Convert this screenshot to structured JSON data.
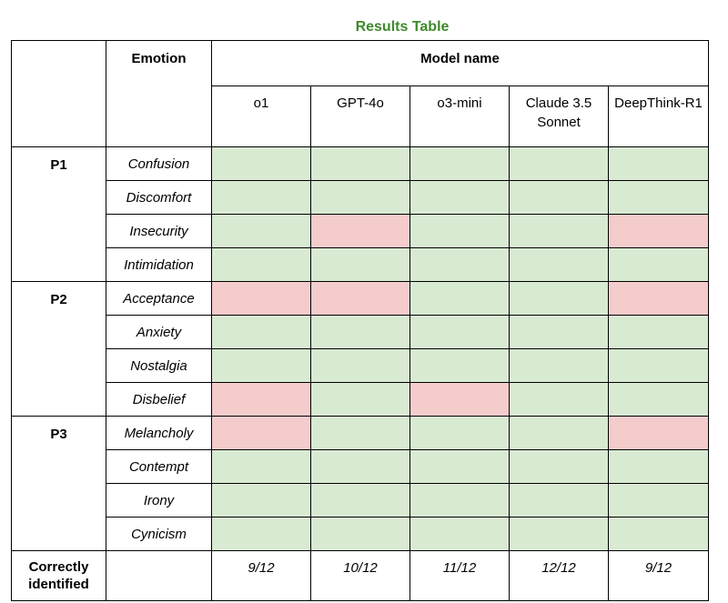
{
  "title": "Results Table",
  "headers": {
    "emotion": "Emotion",
    "model_name": "Model name",
    "models": [
      "o1",
      "GPT-4o",
      "o3-mini",
      "Claude 3.5 Sonnet",
      "DeepThink-R1"
    ]
  },
  "groups": [
    {
      "label": "P1",
      "rows": [
        {
          "emotion": "Confusion",
          "results": [
            "correct",
            "correct",
            "correct",
            "correct",
            "correct"
          ]
        },
        {
          "emotion": "Discomfort",
          "results": [
            "correct",
            "correct",
            "correct",
            "correct",
            "correct"
          ]
        },
        {
          "emotion": "Insecurity",
          "results": [
            "correct",
            "incorrect",
            "correct",
            "correct",
            "incorrect"
          ]
        },
        {
          "emotion": "Intimidation",
          "results": [
            "correct",
            "correct",
            "correct",
            "correct",
            "correct"
          ]
        }
      ]
    },
    {
      "label": "P2",
      "rows": [
        {
          "emotion": "Acceptance",
          "results": [
            "incorrect",
            "incorrect",
            "correct",
            "correct",
            "incorrect"
          ]
        },
        {
          "emotion": "Anxiety",
          "results": [
            "correct",
            "correct",
            "correct",
            "correct",
            "correct"
          ]
        },
        {
          "emotion": "Nostalgia",
          "results": [
            "correct",
            "correct",
            "correct",
            "correct",
            "correct"
          ]
        },
        {
          "emotion": "Disbelief",
          "results": [
            "incorrect",
            "correct",
            "incorrect",
            "correct",
            "correct"
          ]
        }
      ]
    },
    {
      "label": "P3",
      "rows": [
        {
          "emotion": "Melancholy",
          "results": [
            "incorrect",
            "correct",
            "correct",
            "correct",
            "incorrect"
          ]
        },
        {
          "emotion": "Contempt",
          "results": [
            "correct",
            "correct",
            "correct",
            "correct",
            "correct"
          ]
        },
        {
          "emotion": "Irony",
          "results": [
            "correct",
            "correct",
            "correct",
            "correct",
            "correct"
          ]
        },
        {
          "emotion": "Cynicism",
          "results": [
            "correct",
            "correct",
            "correct",
            "correct",
            "correct"
          ]
        }
      ]
    }
  ],
  "totals": {
    "label": "Correctly identified",
    "values": [
      "9/12",
      "10/12",
      "11/12",
      "12/12",
      "9/12"
    ]
  },
  "colors": {
    "title": "#3e8a2a",
    "correct": "#d9ead3",
    "incorrect": "#f4cccc"
  }
}
